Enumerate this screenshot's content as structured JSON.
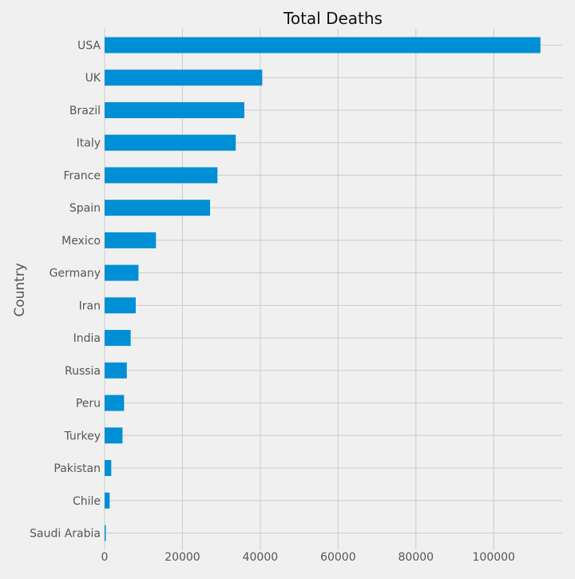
{
  "chart_data": {
    "type": "bar",
    "orientation": "horizontal",
    "title": "Total Deaths",
    "xlabel": "",
    "ylabel": "Country",
    "categories": [
      "USA",
      "UK",
      "Brazil",
      "Italy",
      "France",
      "Spain",
      "Mexico",
      "Germany",
      "Iran",
      "India",
      "Russia",
      "Peru",
      "Turkey",
      "Pakistan",
      "Chile",
      "Saudi Arabia"
    ],
    "values": [
      112000,
      40500,
      35900,
      33700,
      29000,
      27100,
      13200,
      8700,
      8000,
      6700,
      5700,
      5000,
      4600,
      1700,
      1300,
      300
    ],
    "xlim": [
      0,
      117600
    ],
    "xticks": [
      0,
      20000,
      40000,
      60000,
      80000,
      100000
    ],
    "xtick_labels": [
      "0",
      "20000",
      "40000",
      "60000",
      "80000",
      "100000"
    ],
    "bar_color": "#008fd5",
    "grid": true
  }
}
